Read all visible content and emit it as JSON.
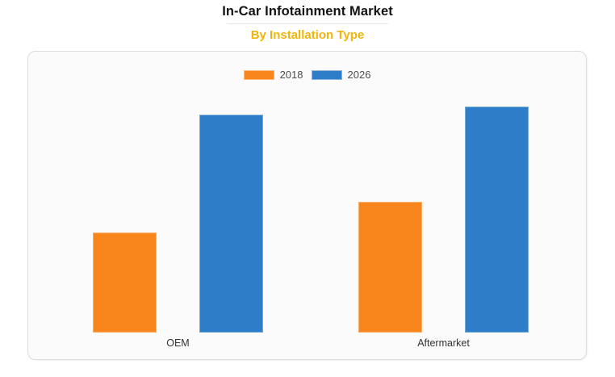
{
  "page": {
    "background": "#ffffff"
  },
  "header": {
    "title": "In-Car Infotainment Market",
    "subtitle": "By Installation Type",
    "title_color": "#141414",
    "subtitle_color": "#f0b50c"
  },
  "card": {
    "background": "#fbfbfb",
    "border_color": "#dcdcdc"
  },
  "chart_data": {
    "type": "bar",
    "title": "In-Car Infotainment Market",
    "subtitle": "By Installation Type",
    "categories": [
      "OEM",
      "Aftermarket"
    ],
    "series": [
      {
        "name": "2018",
        "color": "#f8861d",
        "values": [
          44.3,
          57.9
        ]
      },
      {
        "name": "2026",
        "color": "#2d7dc8",
        "values": [
          96.4,
          100
        ]
      }
    ],
    "xlabel": "",
    "ylabel": "",
    "ylim": [
      0,
      100
    ],
    "grid": false,
    "value_axis_visible": false,
    "legend_position": "top-center",
    "note": "no numeric axis shown in source; values are bar heights normalized to tallest bar = 100"
  }
}
